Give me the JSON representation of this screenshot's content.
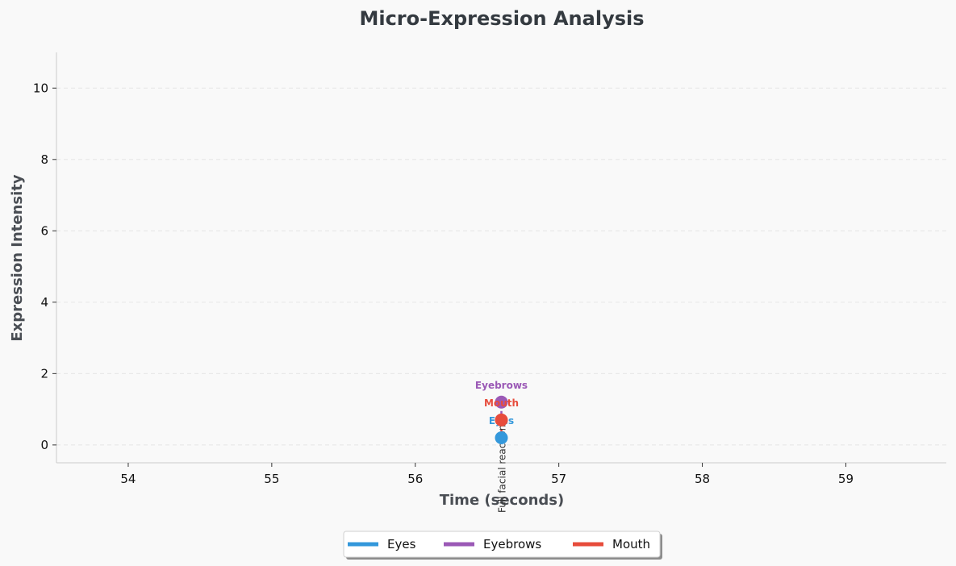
{
  "chart_data": {
    "type": "scatter",
    "title": "Micro-Expression Analysis",
    "xlabel": "Time (seconds)",
    "ylabel": "Expression Intensity",
    "xlim": [
      53.5,
      59.7
    ],
    "ylim": [
      -0.5,
      11
    ],
    "xticks": [
      54,
      55,
      56,
      57,
      58,
      59
    ],
    "yticks": [
      0,
      2,
      4,
      6,
      8,
      10
    ],
    "grid": true,
    "legend_position": "bottom-center",
    "series": [
      {
        "name": "Eyes",
        "color": "#3498db",
        "points": [
          {
            "x": 56.6,
            "y": 0.2,
            "label": "Eyes"
          }
        ]
      },
      {
        "name": "Eyebrows",
        "color": "#9b59b6",
        "points": [
          {
            "x": 56.6,
            "y": 1.2,
            "label": "Eyebrows"
          }
        ]
      },
      {
        "name": "Mouth",
        "color": "#e74c3c",
        "points": [
          {
            "x": 56.6,
            "y": 0.7,
            "label": "Mouth"
          }
        ]
      }
    ],
    "annotations": [
      {
        "text": "Full facial reaction",
        "x": 56.6
      }
    ]
  }
}
